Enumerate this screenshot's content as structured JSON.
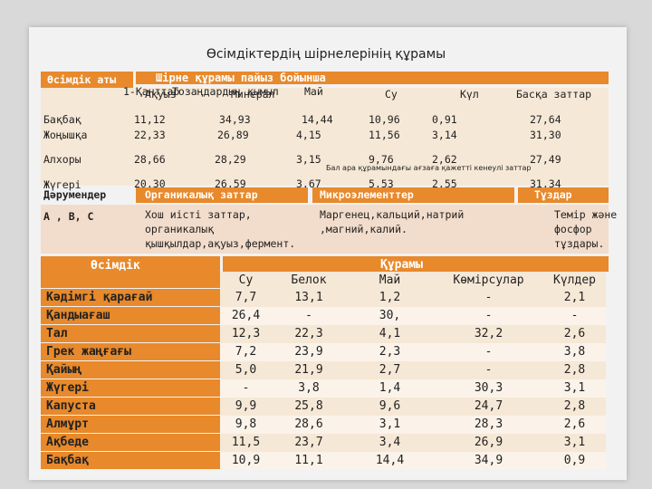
{
  "title": "Өсімдіктердің шірнелерінің құрамы",
  "top_table": {
    "col_plant": "Өсімдік аты",
    "group_header": "Шірне құрамы пайыз бойынша",
    "sub_header_overlap": "1-Қанттар",
    "sub_headers": [
      "Ақуыз",
      "Тозаңдардың қымыл",
      "Минерал",
      "Май",
      "Су",
      "Күл",
      "Басқа заттар"
    ],
    "rows": [
      {
        "name": "Бақбақ",
        "vals": [
          "11,12",
          "34,93",
          "14,44",
          "10,96",
          "0,91",
          "27,64"
        ]
      },
      {
        "name": "Жоңышқа",
        "vals": [
          "22,33",
          "26,89",
          "4,15",
          "11,56",
          "3,14",
          "31,30"
        ]
      },
      {
        "name": "Алхоры",
        "vals": [
          "28,66",
          "28,29",
          "3,15",
          "9,76",
          "2,62",
          "27,49"
        ]
      },
      {
        "name": "Жүгері",
        "vals": [
          "20,30",
          "26,59",
          "3,67",
          "5,53",
          "2,55",
          "31,34"
        ]
      }
    ],
    "note": "Бал ара құрамындағы ағзаға қажетті кенеулі заттар",
    "info_headers": [
      "Дәрумендер",
      "Органикалық заттар",
      "Микроэлементтер",
      "Тұздар"
    ],
    "info_values": {
      "vitamins": "А , В, С",
      "organic": [
        "Хош иісті заттар,",
        "органикалық",
        "қышқылдар,ақуыз,фермент."
      ],
      "micro": [
        "Маргенец,кальций,натрий",
        ",магний,калий."
      ],
      "salts": [
        "Темір және",
        "фосфор",
        "тұздары."
      ]
    }
  },
  "bottom_table": {
    "col_plant": "Өсімдік",
    "group_header": "Құрамы",
    "sub_headers": [
      "Су",
      "Белок",
      "Май",
      "Көмірсулар",
      "Күлдер"
    ],
    "rows": [
      {
        "name": "Кәдімгі қарағай",
        "vals": [
          "7,7",
          "13,1",
          "1,2",
          "-",
          "2,1"
        ]
      },
      {
        "name": "Қандыағаш",
        "vals": [
          "26,4",
          "-",
          "30,",
          "-",
          "-"
        ]
      },
      {
        "name": "Тал",
        "vals": [
          "12,3",
          "22,3",
          "4,1",
          "32,2",
          "2,6"
        ]
      },
      {
        "name": "Грек жаңғағы",
        "vals": [
          "7,2",
          "23,9",
          "2,3",
          "-",
          "3,8"
        ]
      },
      {
        "name": "Қайың",
        "vals": [
          "5,0",
          "21,9",
          "2,7",
          "-",
          "2,8"
        ]
      },
      {
        "name": "Жүгері",
        "vals": [
          "-",
          "3,8",
          "1,4",
          "30,3",
          "3,1"
        ]
      },
      {
        "name": "Капуста",
        "vals": [
          "9,9",
          "25,8",
          "9,6",
          "24,7",
          "2,8"
        ]
      },
      {
        "name": "Алмұрт",
        "vals": [
          "9,8",
          "28,6",
          "3,1",
          "28,3",
          "2,6"
        ]
      },
      {
        "name": "Ақбеде",
        "vals": [
          "11,5",
          "23,7",
          "3,4",
          "26,9",
          "3,1"
        ]
      },
      {
        "name": "Бақбақ",
        "vals": [
          "10,9",
          "11,1",
          "14,4",
          "34,9",
          "0,9"
        ]
      }
    ]
  }
}
